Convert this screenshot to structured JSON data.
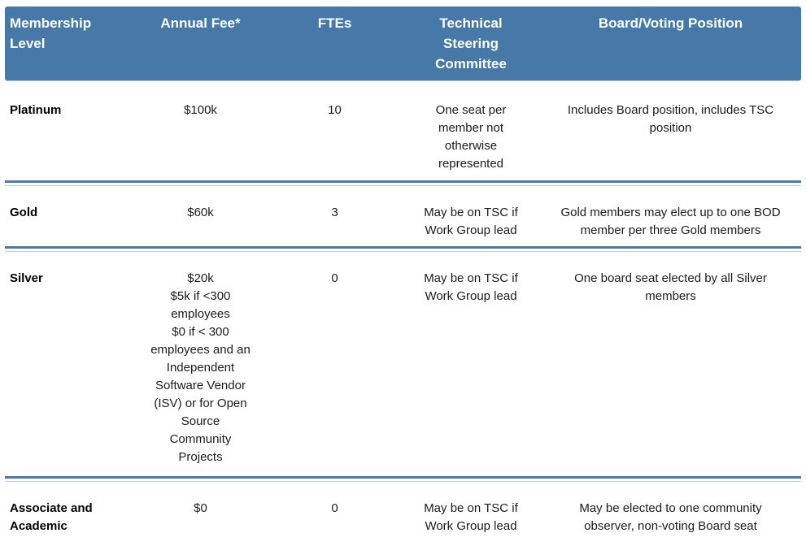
{
  "colors": {
    "header_bg": "#4678a8",
    "header_text": "#ffffff",
    "divider": "#4b79aa",
    "body_text": "#1b1b1b"
  },
  "table": {
    "columns": [
      {
        "label": "Membership\nLevel"
      },
      {
        "label": "Annual Fee*"
      },
      {
        "label": "FTEs"
      },
      {
        "label": "Technical\nSteering\nCommittee"
      },
      {
        "label": "Board/Voting Position"
      }
    ],
    "rows": [
      {
        "level": "Platinum",
        "fee": "$100k",
        "ftes": "10",
        "tsc": "One seat per\nmember not\notherwise\nrepresented",
        "board": "Includes Board position, includes TSC\nposition"
      },
      {
        "level": "Gold",
        "fee": "$60k",
        "ftes": "3",
        "tsc": "May be on TSC if\nWork Group lead",
        "board": "Gold members may elect up to one BOD\nmember per three Gold members"
      },
      {
        "level": "Silver",
        "fee": "$20k\n$5k if <300\nemployees\n$0 if < 300\nemployees and an\nIndependent\nSoftware Vendor\n(ISV) or for Open\nSource\nCommunity\nProjects",
        "ftes": "0",
        "tsc": "May be on TSC if\nWork Group lead",
        "board": "One board seat elected by all Silver\nmembers"
      },
      {
        "level": "Associate and\nAcademic",
        "fee": "$0",
        "ftes": "0",
        "tsc": "May be on TSC if\nWork Group lead",
        "board": "May be elected to one community\nobserver, non-voting Board seat"
      }
    ]
  }
}
